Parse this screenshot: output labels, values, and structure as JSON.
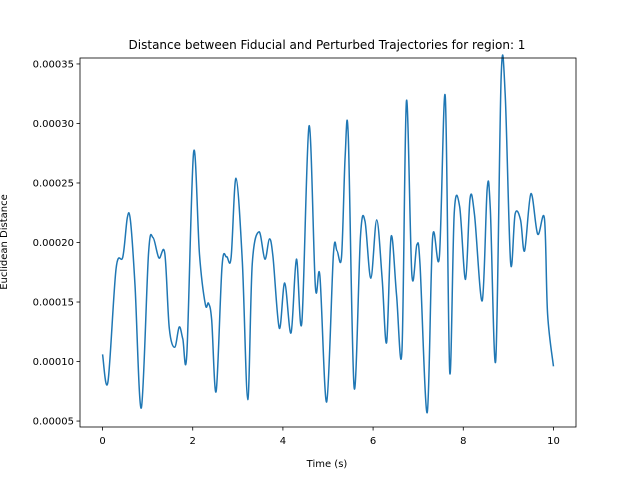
{
  "chart_data": {
    "type": "line",
    "title": "Distance between Fiducial and Perturbed Trajectories for region: 1",
    "xlabel": "Time (s)",
    "ylabel": "Euclidean Distance",
    "xlim": [
      -0.5,
      10.5
    ],
    "ylim": [
      4.5e-05,
      0.000355
    ],
    "xticks": [
      0,
      2,
      4,
      6,
      8,
      10
    ],
    "xtick_labels": [
      "0",
      "2",
      "4",
      "6",
      "8",
      "10"
    ],
    "yticks": [
      5e-05,
      0.0001,
      0.00015,
      0.0002,
      0.00025,
      0.0003,
      0.00035
    ],
    "ytick_labels": [
      "0.00005",
      "0.00010",
      "0.00015",
      "0.00020",
      "0.00025",
      "0.00030",
      "0.00035"
    ],
    "grid": false,
    "line_color": "#1f77b4",
    "series": [
      {
        "x": [
          0,
          0.12,
          0.3,
          0.45,
          0.55,
          0.62,
          0.72,
          0.86,
          1.02,
          1.12,
          1.25,
          1.38,
          1.48,
          1.6,
          1.7,
          1.78,
          1.87,
          2.02,
          2.15,
          2.28,
          2.35,
          2.42,
          2.52,
          2.65,
          2.75,
          2.85,
          2.96,
          3.1,
          3.22,
          3.32,
          3.47,
          3.6,
          3.7,
          3.78,
          3.92,
          4.04,
          4.18,
          4.3,
          4.42,
          4.58,
          4.72,
          4.82,
          4.97,
          5.12,
          5.2,
          5.3,
          5.38,
          5.45,
          5.58,
          5.72,
          5.82,
          5.95,
          6.08,
          6.2,
          6.3,
          6.4,
          6.52,
          6.64,
          6.74,
          6.86,
          6.97,
          7.04,
          7.2,
          7.32,
          7.47,
          7.6,
          7.7,
          7.8,
          7.92,
          8.05,
          8.15,
          8.25,
          8.42,
          8.53,
          8.6,
          8.72,
          8.84,
          8.93,
          9.05,
          9.15,
          9.27,
          9.36,
          9.5,
          9.65,
          9.8,
          9.87,
          10.0
        ],
        "y": [
          0.000106,
          8.3e-05,
          0.000178,
          0.000188,
          0.000221,
          0.000218,
          0.000164,
          6.1e-05,
          0.000191,
          0.000204,
          0.000187,
          0.000191,
          0.000128,
          0.000112,
          0.000129,
          0.000119,
          0.000107,
          0.000276,
          0.00019,
          0.000148,
          0.000149,
          0.000135,
          7.5e-05,
          0.00018,
          0.000188,
          0.000187,
          0.000254,
          0.000184,
          6.8e-05,
          0.000182,
          0.000209,
          0.000186,
          0.000203,
          0.000188,
          0.000128,
          0.000166,
          0.000124,
          0.000186,
          0.000133,
          0.000298,
          0.000163,
          0.000172,
          6.6e-05,
          0.00019,
          0.000193,
          0.000188,
          0.000272,
          0.000289,
          7.8e-05,
          0.000205,
          0.000218,
          0.00017,
          0.000219,
          0.00017,
          0.000116,
          0.000205,
          0.000156,
          0.000109,
          0.000319,
          0.000173,
          0.000198,
          0.000182,
          5.7e-05,
          0.000204,
          0.000188,
          0.000323,
          9.1e-05,
          0.000225,
          0.00023,
          0.000169,
          0.000237,
          0.000223,
          0.000151,
          0.000245,
          0.000228,
          0.000101,
          0.000339,
          0.000324,
          0.000183,
          0.000224,
          0.000219,
          0.000193,
          0.000241,
          0.000207,
          0.00022,
          0.00014,
          9.6e-05
        ]
      }
    ]
  }
}
